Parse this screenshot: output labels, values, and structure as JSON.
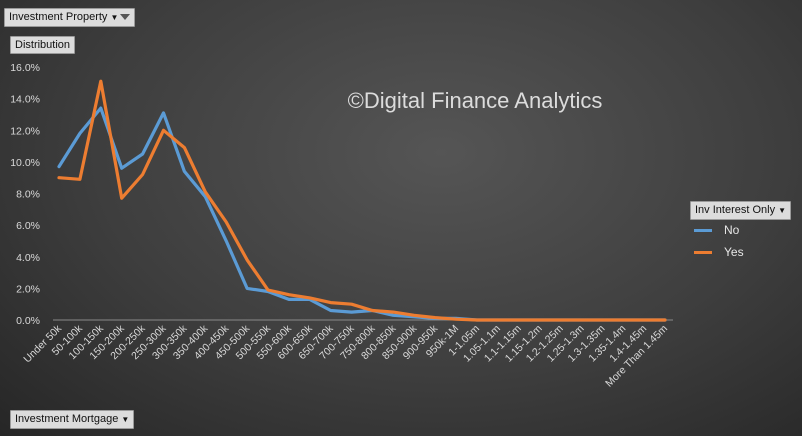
{
  "filter_label": "Investment Property",
  "values_label": "Distribution",
  "axis_field_label": "Investment Mortgage",
  "legend_field_label": "Inv Interest Only",
  "watermark": "©Digital Finance Analytics",
  "chart_data": {
    "type": "line",
    "categories": [
      "Under 50k",
      "50-100k",
      "100-150k",
      "150-200k",
      "200-250k",
      "250-300k",
      "300-350k",
      "350-400k",
      "400-450k",
      "450-500k",
      "500-550k",
      "550-600k",
      "600-650k",
      "650-700k",
      "700-750k",
      "750-800k",
      "800-850k",
      "850-900k",
      "900-950k",
      "950k-1M",
      "1-1.05m",
      "1.05-1.1m",
      "1.1-1.15m",
      "1.15-1.2m",
      "1.2-1.25m",
      "1.25-1.3m",
      "1.3-1.35m",
      "1.35-1.4m",
      "1.4-1.45m",
      "More Than 1.45m"
    ],
    "series": [
      {
        "name": "No",
        "color": "#5b9bd5",
        "values": [
          9.7,
          11.8,
          13.4,
          9.6,
          10.5,
          13.1,
          9.4,
          7.8,
          5.0,
          2.0,
          1.8,
          1.3,
          1.3,
          0.6,
          0.5,
          0.6,
          0.3,
          0.2,
          0.1,
          0.1,
          0.0,
          0.0,
          0.0,
          0.0,
          0.0,
          0.0,
          0.0,
          0.0,
          0.0,
          0.0
        ]
      },
      {
        "name": "Yes",
        "color": "#ed7d31",
        "values": [
          9.0,
          8.9,
          15.1,
          7.7,
          9.2,
          12.0,
          10.9,
          8.1,
          6.2,
          3.8,
          1.9,
          1.6,
          1.4,
          1.1,
          1.0,
          0.6,
          0.5,
          0.3,
          0.15,
          0.05,
          0.0,
          0.0,
          0.0,
          0.0,
          0.0,
          0.0,
          0.0,
          0.0,
          0.0,
          0.0
        ]
      }
    ],
    "yticks": [
      "0.0%",
      "2.0%",
      "4.0%",
      "6.0%",
      "8.0%",
      "10.0%",
      "12.0%",
      "14.0%",
      "16.0%"
    ],
    "ylim": [
      0,
      16
    ],
    "grid": false,
    "legend_position": "right"
  }
}
